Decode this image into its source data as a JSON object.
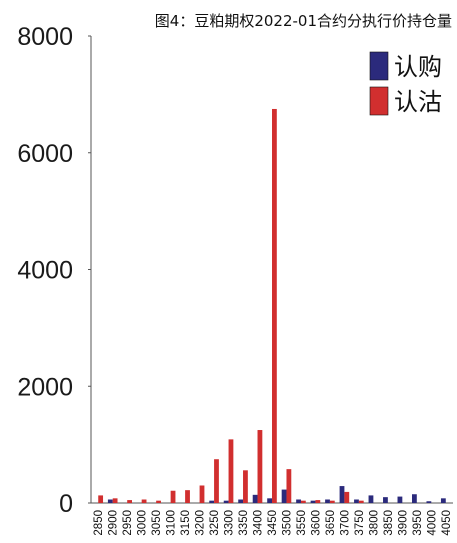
{
  "chart_data": {
    "type": "bar",
    "title": "图4：豆粕期权2022-01合约分执行价持仓量",
    "xlabel": "",
    "ylabel": "",
    "ylim": [
      0,
      8000
    ],
    "yticks": [
      0,
      2000,
      4000,
      6000,
      8000
    ],
    "grid": false,
    "legend_position": "top-right",
    "categories": [
      "2850",
      "2900",
      "2950",
      "3000",
      "3050",
      "3100",
      "3150",
      "3200",
      "3250",
      "3300",
      "3350",
      "3400",
      "3450",
      "3500",
      "3550",
      "3600",
      "3650",
      "3700",
      "3750",
      "3800",
      "3850",
      "3900",
      "3950",
      "4000",
      "4050"
    ],
    "series": [
      {
        "name": "认购",
        "color": "#2b2a7c",
        "values": [
          0,
          60,
          0,
          0,
          0,
          0,
          0,
          0,
          40,
          40,
          60,
          140,
          80,
          230,
          60,
          40,
          60,
          290,
          60,
          130,
          100,
          110,
          150,
          30,
          80
        ]
      },
      {
        "name": "认沽",
        "color": "#d12f2f",
        "values": [
          130,
          80,
          50,
          60,
          40,
          210,
          220,
          300,
          750,
          1090,
          560,
          1250,
          6750,
          580,
          40,
          50,
          40,
          190,
          40,
          0,
          0,
          0,
          0,
          0,
          0
        ]
      }
    ]
  }
}
